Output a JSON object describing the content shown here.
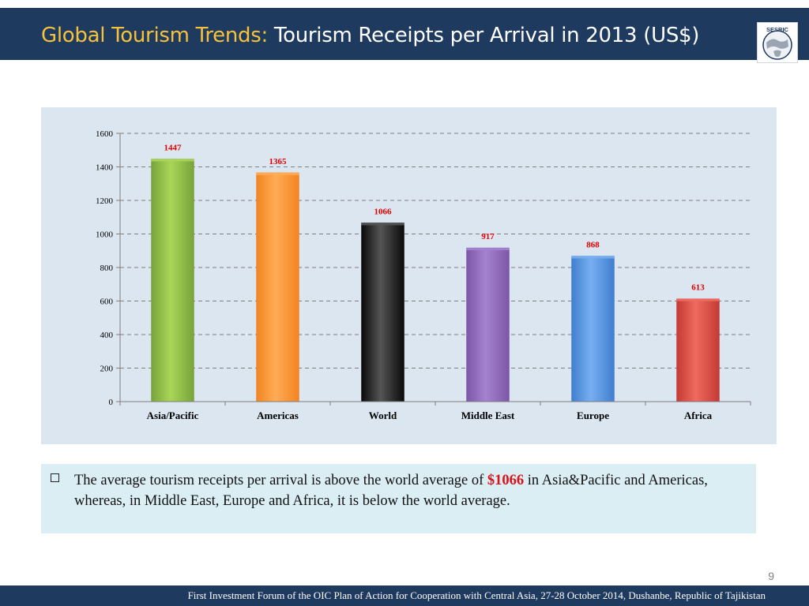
{
  "header": {
    "title_accent": "Global Tourism Trends:",
    "title_main": " Tourism Receipts per Arrival in 2013 (US$)",
    "logo_text": "SESRIC"
  },
  "colors": {
    "header_bg": "#1f3a5f",
    "accent": "#f6c23a",
    "chart_bg": "#dce6f1",
    "note_bg": "#dbeef4",
    "label_red": "#e00000"
  },
  "chart_data": {
    "type": "bar",
    "categories": [
      "Asia/Pacific",
      "Americas",
      "World",
      "Middle East",
      "Europe",
      "Africa"
    ],
    "values": [
      1447,
      1365,
      1066,
      917,
      868,
      613
    ],
    "data_labels": [
      "1447",
      "1365",
      "1066",
      "917",
      "868",
      "613"
    ],
    "bar_colors": [
      "#77a33b",
      "#f28422",
      "#0a0a0a",
      "#7d56a8",
      "#3f7fcf",
      "#c43a34"
    ],
    "bar_highlight": [
      "#a9d657",
      "#ffac55",
      "#555555",
      "#a583cf",
      "#78aef0",
      "#ef6a5f"
    ],
    "ylim": [
      0,
      1600
    ],
    "yticks": [
      0,
      200,
      400,
      600,
      800,
      1000,
      1200,
      1400,
      1600
    ],
    "ytick_labels": [
      "0",
      "200",
      "400",
      "600",
      "800",
      "1000",
      "1200",
      "1400",
      "1600"
    ],
    "grid": true,
    "legend": "none"
  },
  "note": {
    "before": "The average tourism receipts per arrival is above the world average of ",
    "highlight": "$1066",
    "after": " in Asia&Pacific and Americas, whereas, in Middle East, Europe and Africa, it is below the world average."
  },
  "page_number": "9",
  "footer": {
    "text": "First Investment Forum of the OIC Plan of Action for Cooperation with Central Asia, 27-28 October 2014, Dushanbe, Republic of Tajikistan"
  }
}
